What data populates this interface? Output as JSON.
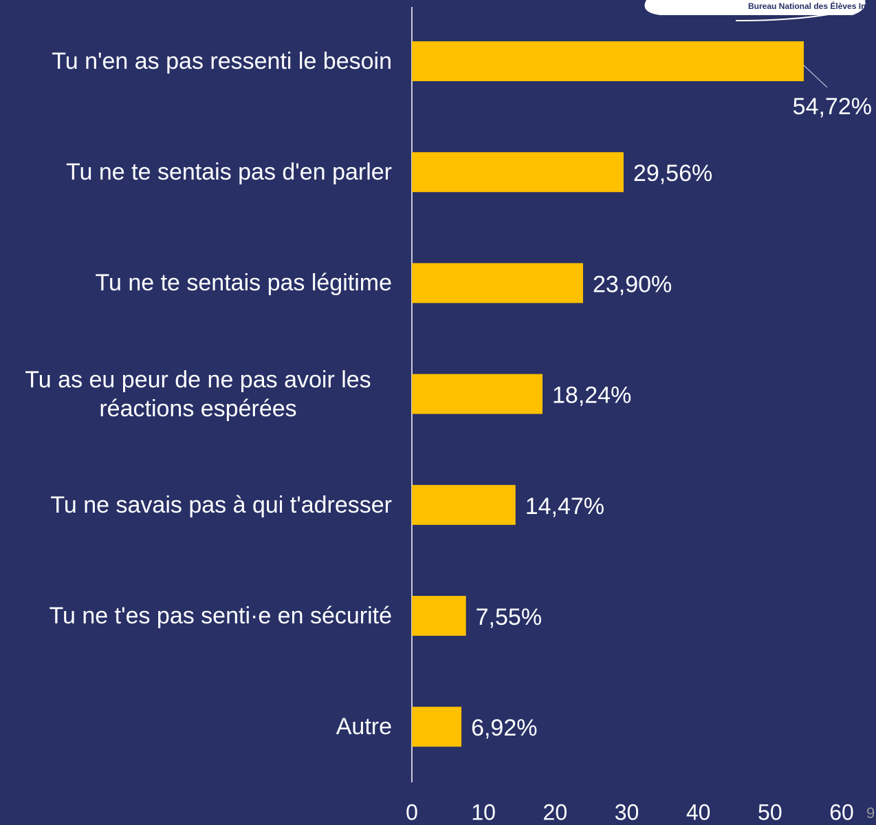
{
  "logo_text": "Bureau National des Élèves Ingénieurs",
  "slide_number": "9",
  "chart_data": {
    "type": "bar",
    "orientation": "horizontal",
    "categories": [
      "Tu n'en as pas ressenti le besoin",
      "Tu ne te sentais pas d'en parler",
      "Tu ne te sentais pas légitime",
      "Tu as eu peur de ne pas avoir les réactions espérées",
      "Tu ne savais pas à qui t'adresser",
      "Tu ne t'es pas senti·e en sécurité",
      "Autre"
    ],
    "values": [
      54.72,
      29.56,
      23.9,
      18.24,
      14.47,
      7.55,
      6.92
    ],
    "value_labels": [
      "54,72%",
      "29,56%",
      "23,90%",
      "18,24%",
      "14,47%",
      "7,55%",
      "6,92%"
    ],
    "color": "#ffc000",
    "xlim": [
      0,
      60
    ],
    "xticks": [
      0,
      10,
      20,
      30,
      40,
      50,
      60
    ],
    "grid": false
  }
}
